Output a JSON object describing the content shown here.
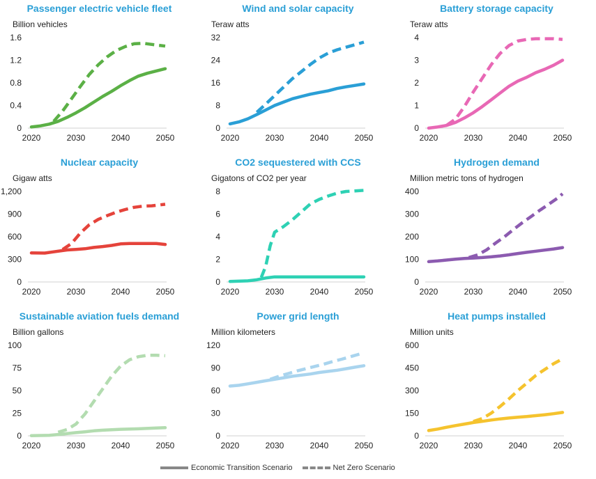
{
  "legend": {
    "solid_label": "Economic Transition Scenario",
    "dashed_label": "Net Zero Scenario"
  },
  "chart_data": [
    {
      "type": "line",
      "title": "Passenger electric vehicle fleet",
      "ylabel": "Billion  vehicles",
      "color": "#5bb046",
      "ylim": [
        0,
        1.6
      ],
      "yticks": [
        "0",
        "0.4",
        "0.8",
        "1.2",
        "1.6"
      ],
      "xlim": [
        2020,
        2050
      ],
      "xticks": [
        "2020",
        "2030",
        "2040",
        "2050"
      ],
      "series": [
        {
          "name": "Economic Transition Scenario",
          "style": "solid",
          "x": [
            2020,
            2022,
            2024,
            2026,
            2028,
            2030,
            2032,
            2034,
            2036,
            2038,
            2040,
            2042,
            2044,
            2046,
            2048,
            2050
          ],
          "values": [
            0.02,
            0.04,
            0.07,
            0.12,
            0.19,
            0.27,
            0.36,
            0.46,
            0.56,
            0.65,
            0.75,
            0.84,
            0.92,
            0.97,
            1.01,
            1.05
          ]
        },
        {
          "name": "Net Zero Scenario",
          "style": "dashed",
          "x": [
            2025,
            2027,
            2029,
            2031,
            2033,
            2035,
            2037,
            2039,
            2041,
            2043,
            2045,
            2047,
            2050
          ],
          "values": [
            0.12,
            0.3,
            0.52,
            0.74,
            0.95,
            1.12,
            1.26,
            1.37,
            1.44,
            1.49,
            1.5,
            1.48,
            1.45
          ]
        }
      ]
    },
    {
      "type": "line",
      "title": "Wind and solar capacity",
      "ylabel": "Teraw atts",
      "color": "#2a9fd6",
      "ylim": [
        0,
        32
      ],
      "yticks": [
        "0",
        "8",
        "16",
        "24",
        "32"
      ],
      "xlim": [
        2020,
        2050
      ],
      "xticks": [
        "2020",
        "2030",
        "2040",
        "2050"
      ],
      "series": [
        {
          "name": "Economic Transition Scenario",
          "style": "solid",
          "x": [
            2020,
            2022,
            2024,
            2026,
            2028,
            2030,
            2032,
            2034,
            2036,
            2038,
            2040,
            2042,
            2044,
            2046,
            2048,
            2050
          ],
          "values": [
            1.5,
            2.2,
            3.3,
            4.8,
            6.4,
            8.0,
            9.2,
            10.4,
            11.2,
            12.0,
            12.6,
            13.2,
            14.0,
            14.6,
            15.1,
            15.6
          ]
        },
        {
          "name": "Net Zero Scenario",
          "style": "dashed",
          "x": [
            2026,
            2028,
            2030,
            2032,
            2034,
            2036,
            2038,
            2040,
            2042,
            2044,
            2046,
            2048,
            2050
          ],
          "values": [
            5.6,
            8.5,
            11.5,
            14.5,
            17.5,
            20.0,
            22.5,
            24.8,
            26.5,
            27.7,
            28.6,
            29.5,
            30.4
          ]
        }
      ]
    },
    {
      "type": "line",
      "title": "Battery storage capacity",
      "ylabel": "Teraw atts",
      "color": "#e868b5",
      "ylim": [
        0,
        4
      ],
      "yticks": [
        "0",
        "1",
        "2",
        "3",
        "4"
      ],
      "xlim": [
        2020,
        2050
      ],
      "xticks": [
        "2020",
        "2030",
        "2040",
        "2050"
      ],
      "series": [
        {
          "name": "Economic Transition Scenario",
          "style": "solid",
          "x": [
            2020,
            2022,
            2024,
            2026,
            2028,
            2030,
            2032,
            2034,
            2036,
            2038,
            2040,
            2042,
            2044,
            2046,
            2048,
            2050
          ],
          "values": [
            0.0,
            0.05,
            0.12,
            0.25,
            0.45,
            0.68,
            0.95,
            1.25,
            1.55,
            1.85,
            2.08,
            2.25,
            2.45,
            2.6,
            2.78,
            3.0
          ]
        },
        {
          "name": "Net Zero Scenario",
          "style": "dashed",
          "x": [
            2024,
            2026,
            2028,
            2030,
            2032,
            2034,
            2036,
            2038,
            2040,
            2042,
            2044,
            2046,
            2048,
            2050
          ],
          "values": [
            0.12,
            0.4,
            0.95,
            1.6,
            2.2,
            2.8,
            3.3,
            3.65,
            3.85,
            3.92,
            3.95,
            3.95,
            3.95,
            3.92
          ]
        }
      ]
    },
    {
      "type": "line",
      "title": "Nuclear capacity",
      "ylabel": "Gigaw atts",
      "color": "#e5433b",
      "ylim": [
        0,
        1200
      ],
      "yticks": [
        "0",
        "300",
        "600",
        "900",
        "1,200"
      ],
      "xlim": [
        2020,
        2050
      ],
      "xticks": [
        "2020",
        "2030",
        "2040",
        "2050"
      ],
      "series": [
        {
          "name": "Economic Transition Scenario",
          "style": "solid",
          "x": [
            2020,
            2023,
            2025,
            2028,
            2030,
            2032,
            2034,
            2036,
            2038,
            2040,
            2042,
            2045,
            2048,
            2050
          ],
          "values": [
            385,
            383,
            400,
            425,
            432,
            440,
            458,
            470,
            485,
            505,
            510,
            510,
            510,
            498
          ]
        },
        {
          "name": "Net Zero Scenario",
          "style": "dashed",
          "x": [
            2027,
            2029,
            2031,
            2033,
            2035,
            2037,
            2039,
            2041,
            2043,
            2045,
            2047,
            2050
          ],
          "values": [
            430,
            510,
            650,
            760,
            830,
            880,
            925,
            960,
            990,
            1005,
            1010,
            1030
          ]
        }
      ]
    },
    {
      "type": "line",
      "title": "CO2 sequestered with CCS",
      "ylabel": "Gigatons of CO2 per year",
      "color": "#2ed1b4",
      "ylim": [
        0,
        8
      ],
      "yticks": [
        "0",
        "2",
        "4",
        "6",
        "8"
      ],
      "xlim": [
        2020,
        2050
      ],
      "xticks": [
        "2020",
        "2030",
        "2040",
        "2050"
      ],
      "series": [
        {
          "name": "Economic Transition Scenario",
          "style": "solid",
          "x": [
            2020,
            2024,
            2026,
            2028,
            2030,
            2035,
            2040,
            2045,
            2050
          ],
          "values": [
            0.05,
            0.1,
            0.2,
            0.35,
            0.45,
            0.45,
            0.45,
            0.45,
            0.45
          ]
        },
        {
          "name": "Net Zero Scenario",
          "style": "dashed",
          "x": [
            2027,
            2028,
            2029,
            2030,
            2032,
            2034,
            2036,
            2038,
            2040,
            2042,
            2044,
            2046,
            2048,
            2050
          ],
          "values": [
            0.4,
            1.4,
            3.2,
            4.4,
            4.9,
            5.5,
            6.2,
            6.9,
            7.3,
            7.6,
            7.85,
            8.0,
            8.05,
            8.1
          ]
        }
      ]
    },
    {
      "type": "line",
      "title": "Hydrogen demand",
      "ylabel": "Million  metric tons of hydrogen",
      "color": "#8c5bb0",
      "ylim": [
        0,
        400
      ],
      "yticks": [
        "0",
        "100",
        "200",
        "300",
        "400"
      ],
      "xlim": [
        2020,
        2050
      ],
      "xticks": [
        "2020",
        "2030",
        "2040",
        "2050"
      ],
      "series": [
        {
          "name": "Economic Transition Scenario",
          "style": "solid",
          "x": [
            2020,
            2022,
            2024,
            2026,
            2028,
            2030,
            2032,
            2034,
            2036,
            2038,
            2040,
            2042,
            2044,
            2046,
            2048,
            2050
          ],
          "values": [
            90,
            93,
            97,
            101,
            104,
            106,
            108,
            111,
            115,
            120,
            126,
            131,
            136,
            141,
            146,
            152
          ]
        },
        {
          "name": "Net Zero Scenario",
          "style": "dashed",
          "x": [
            2029,
            2031,
            2033,
            2035,
            2037,
            2039,
            2041,
            2043,
            2045,
            2047,
            2049,
            2050
          ],
          "values": [
            108,
            120,
            142,
            172,
            200,
            232,
            262,
            290,
            318,
            345,
            372,
            390
          ]
        }
      ]
    },
    {
      "type": "line",
      "title": "Sustainable aviation fuels demand",
      "ylabel": "Billion  gallons",
      "color": "#b3dcb0",
      "ylim": [
        0,
        100
      ],
      "yticks": [
        "0",
        "25",
        "50",
        "75",
        "100"
      ],
      "xlim": [
        2020,
        2050
      ],
      "xticks": [
        "2020",
        "2030",
        "2040",
        "2050"
      ],
      "series": [
        {
          "name": "Economic Transition Scenario",
          "style": "solid",
          "x": [
            2020,
            2024,
            2026,
            2028,
            2030,
            2032,
            2034,
            2036,
            2038,
            2040,
            2044,
            2048,
            2050
          ],
          "values": [
            0.2,
            0.5,
            1.5,
            2.5,
            3.5,
            4.5,
            5.5,
            6.2,
            6.8,
            7.2,
            7.8,
            8.6,
            9
          ]
        },
        {
          "name": "Net Zero Scenario",
          "style": "dashed",
          "x": [
            2026,
            2028,
            2030,
            2032,
            2034,
            2036,
            2038,
            2040,
            2042,
            2044,
            2046,
            2048,
            2050
          ],
          "values": [
            4,
            7,
            13,
            24,
            38,
            52,
            66,
            77,
            84,
            87.5,
            89,
            89,
            88.5
          ]
        }
      ]
    },
    {
      "type": "line",
      "title": "Power grid length",
      "ylabel": "Million  kilometers",
      "color": "#a9d4ee",
      "ylim": [
        0,
        120
      ],
      "yticks": [
        "0",
        "30",
        "60",
        "90",
        "120"
      ],
      "xlim": [
        2020,
        2050
      ],
      "xticks": [
        "2020",
        "2030",
        "2040",
        "2050"
      ],
      "series": [
        {
          "name": "Economic Transition Scenario",
          "style": "solid",
          "x": [
            2020,
            2022,
            2024,
            2026,
            2028,
            2030,
            2032,
            2034,
            2036,
            2038,
            2040,
            2042,
            2044,
            2046,
            2048,
            2050
          ],
          "values": [
            66,
            67,
            69,
            71,
            73,
            75,
            77,
            79,
            80.5,
            82,
            84,
            85.5,
            87,
            89,
            91,
            93
          ]
        },
        {
          "name": "Net Zero Scenario",
          "style": "dashed",
          "x": [
            2029,
            2031,
            2033,
            2035,
            2037,
            2039,
            2041,
            2043,
            2045,
            2047,
            2050
          ],
          "values": [
            75,
            79,
            82.5,
            86,
            89,
            92,
            95,
            98.5,
            101.5,
            105,
            110
          ]
        }
      ]
    },
    {
      "type": "line",
      "title": "Heat pumps installed",
      "ylabel": "Million  units",
      "color": "#f5c32e",
      "ylim": [
        0,
        600
      ],
      "yticks": [
        "0",
        "150",
        "300",
        "450",
        "600"
      ],
      "xlim": [
        2020,
        2050
      ],
      "xticks": [
        "2020",
        "2030",
        "2040",
        "2050"
      ],
      "series": [
        {
          "name": "Economic Transition Scenario",
          "style": "solid",
          "x": [
            2020,
            2022,
            2024,
            2026,
            2028,
            2030,
            2032,
            2034,
            2036,
            2038,
            2040,
            2042,
            2044,
            2046,
            2048,
            2050
          ],
          "values": [
            35,
            45,
            57,
            68,
            78,
            88,
            96,
            105,
            112,
            118,
            123,
            128,
            134,
            140,
            147,
            155
          ]
        },
        {
          "name": "Net Zero Scenario",
          "style": "dashed",
          "x": [
            2030,
            2032,
            2034,
            2036,
            2038,
            2040,
            2042,
            2044,
            2046,
            2048,
            2050
          ],
          "values": [
            95,
            115,
            150,
            195,
            245,
            300,
            350,
            400,
            440,
            478,
            510
          ]
        }
      ]
    }
  ]
}
